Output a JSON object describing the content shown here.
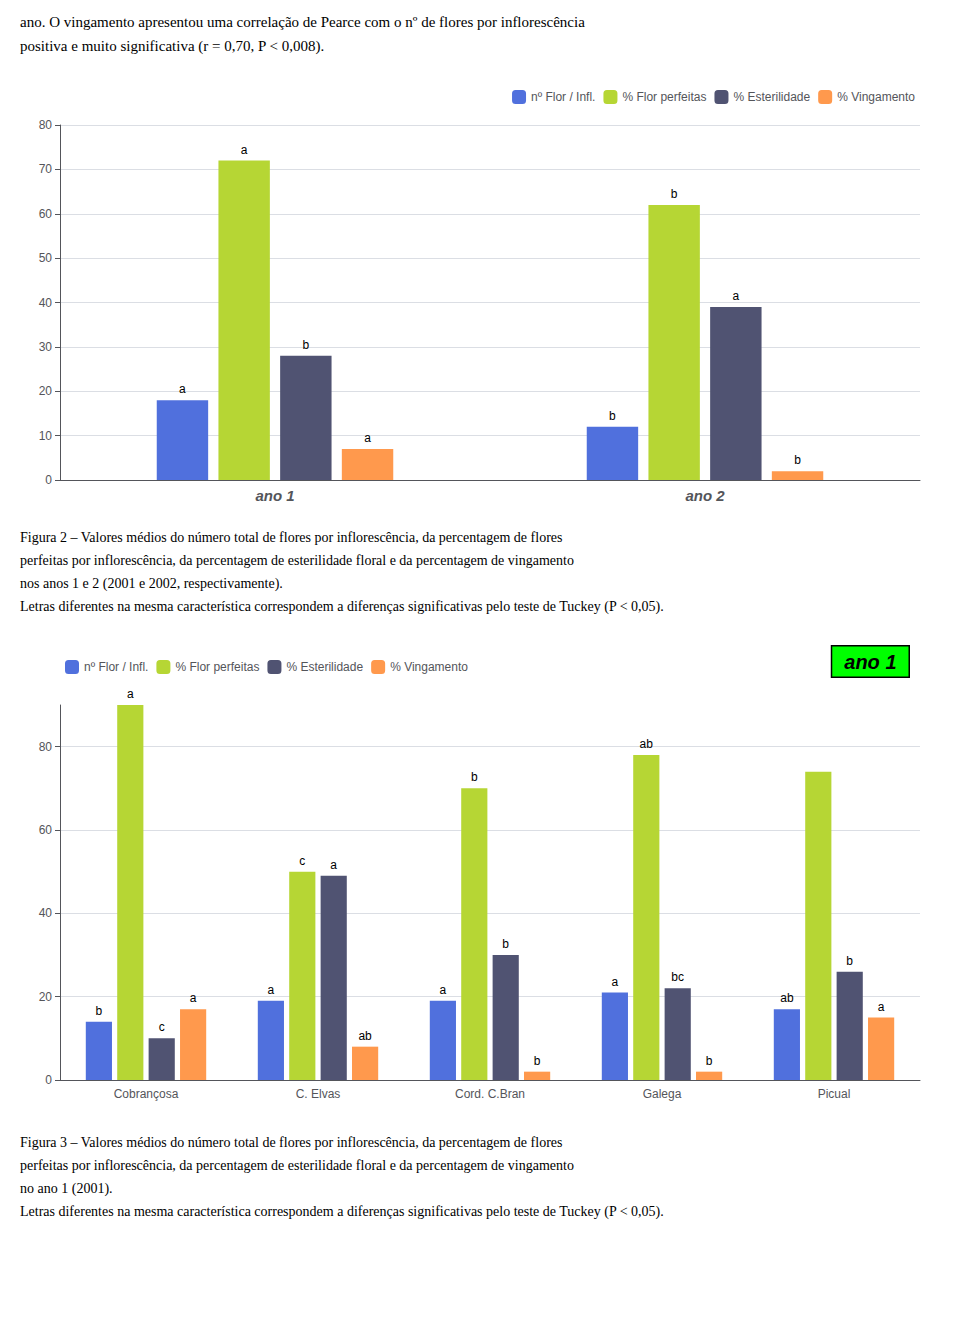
{
  "text": [
    "ano. O vingamento apresentou uma correlação de Pearce com o nº de flores por inflorescência",
    "positiva e muito significativa (r = 0,70, P < 0,008)."
  ],
  "chart_data": [
    {
      "type": "bar",
      "categories": [
        "ano 1",
        "ano 2"
      ],
      "series": [
        {
          "name": "nº Flor / Infl.",
          "values": [
            18,
            12
          ],
          "value_labels": [
            "a",
            "b"
          ]
        },
        {
          "name": "% Flor perfeitas",
          "values": [
            72,
            62
          ],
          "value_labels": [
            "a",
            "b"
          ]
        },
        {
          "name": "% Esterilidade",
          "values": [
            28,
            39
          ],
          "value_labels": [
            "b",
            "a"
          ]
        },
        {
          "name": "% Vingamento",
          "values": [
            7,
            2
          ],
          "value_labels": [
            "a",
            "b"
          ]
        }
      ],
      "ylim": [
        0,
        80
      ],
      "yticks": [
        0,
        10,
        20,
        30,
        40,
        50,
        60,
        70,
        80
      ],
      "grid": true,
      "legend": "upper right",
      "caption": [
        "Figura 2 – Valores médios do número total de flores por inflorescência, da percentagem de flores",
        "perfeitas por inflorescência, da percentagem de esterilidade floral e da percentagem de vingamento",
        "nos anos 1 e 2 (2001 e 2002, respectivamente).",
        "Letras diferentes na mesma característica correspondem a diferenças significativas pelo teste de Tuckey (P < 0,05)."
      ]
    },
    {
      "type": "bar",
      "categories": [
        "Cobrançosa",
        "C. Elvas",
        "Cord. C.Bran",
        "Galega",
        "Picual"
      ],
      "series": [
        {
          "name": "nº Flor / Infl.",
          "values": [
            14,
            19,
            19,
            21,
            17
          ],
          "value_labels": [
            "b",
            "a",
            "a",
            "a",
            "ab"
          ]
        },
        {
          "name": "% Flor perfeitas",
          "values": [
            90,
            50,
            70,
            78,
            74
          ],
          "value_labels": [
            "a",
            "c",
            "b",
            "ab",
            null
          ]
        },
        {
          "name": "% Esterilidade",
          "values": [
            10,
            49,
            30,
            22,
            26
          ],
          "value_labels": [
            "c",
            "a",
            "b",
            "bc",
            "b"
          ]
        },
        {
          "name": "% Vingamento",
          "values": [
            17,
            8,
            2,
            2,
            15
          ],
          "value_labels": [
            "a",
            "ab",
            "b",
            "b",
            "a"
          ]
        }
      ],
      "ylim": [
        0,
        90
      ],
      "yticks": [
        0,
        20,
        40,
        60,
        80
      ],
      "grid": true,
      "legend": "upper left",
      "annotations": [
        {
          "text": "ano 1",
          "color": "#00FF00"
        }
      ],
      "caption": [
        "Figura 3 – Valores médios do número total de flores por inflorescência, da percentagem de flores",
        "perfeitas por inflorescência, da percentagem de esterilidade floral e da percentagem de vingamento",
        "no ano 1 (2001).",
        "Letras diferentes na mesma característica correspondem a diferenças significativas pelo teste de Tuckey (P < 0,05)."
      ]
    }
  ]
}
